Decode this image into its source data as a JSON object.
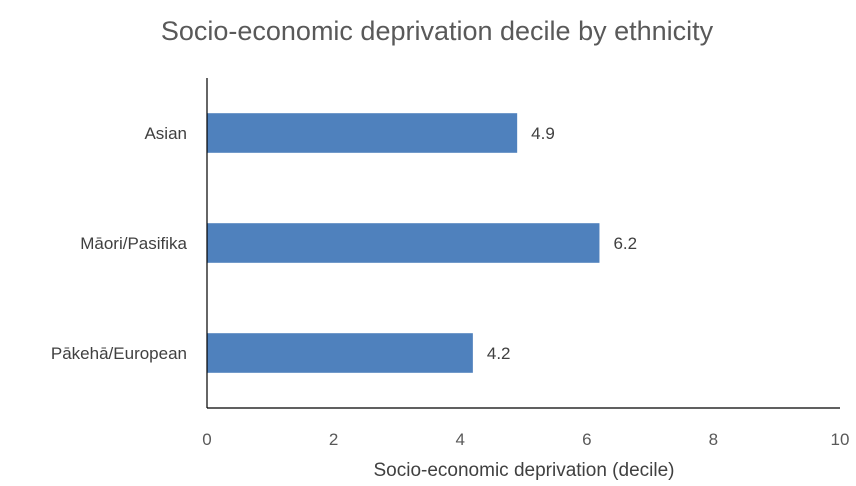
{
  "chart_data": {
    "type": "bar",
    "orientation": "horizontal",
    "title": "Socio-economic deprivation decile by ethnicity",
    "xlabel": "Socio-economic deprivation (decile)",
    "ylabel": "",
    "categories": [
      "Asian",
      "Māori/Pasifika",
      "Pākehā/European"
    ],
    "values": [
      4.9,
      6.2,
      4.2
    ],
    "data_labels": [
      "4.9",
      "6.2",
      "4.2"
    ],
    "xlim": [
      0,
      10
    ],
    "xticks": [
      0,
      2,
      4,
      6,
      8,
      10
    ],
    "grid": false,
    "legend": "none",
    "bar_color": "#4f81bd"
  }
}
